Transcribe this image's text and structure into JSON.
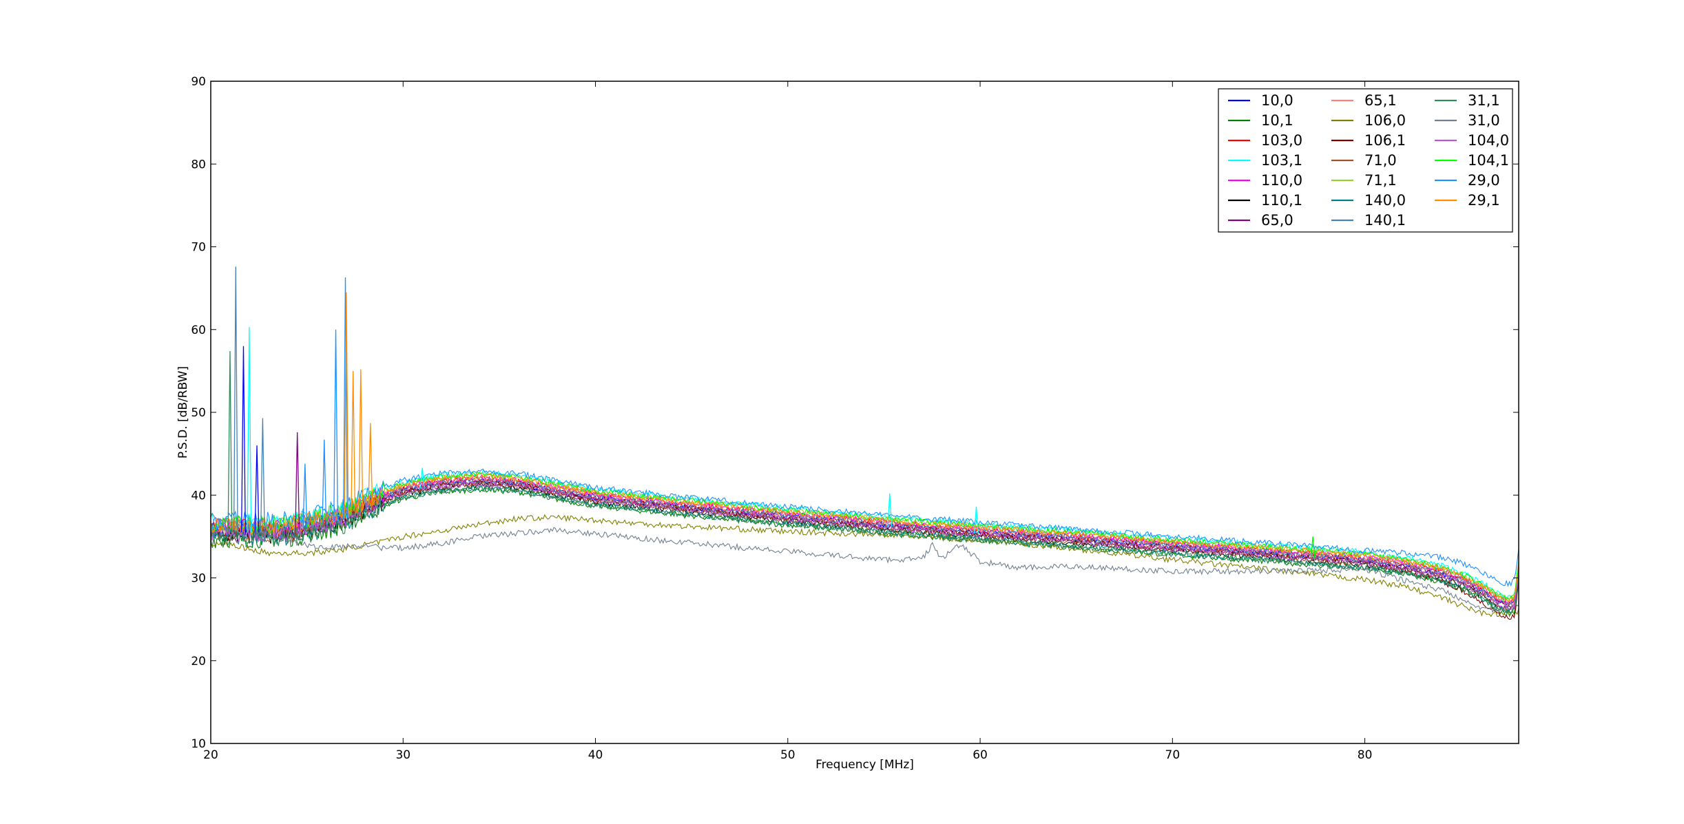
{
  "chart_data": {
    "type": "line",
    "title": "",
    "xlabel": "Frequency [MHz]",
    "ylabel": "P.S.D. [dB/RBW]",
    "xlim": [
      20,
      88
    ],
    "ylim": [
      10,
      90
    ],
    "xticks": [
      "20",
      "30",
      "40",
      "50",
      "60",
      "70",
      "80"
    ],
    "yticks": [
      "10",
      "20",
      "30",
      "40",
      "50",
      "60",
      "70",
      "80",
      "90"
    ],
    "grid": false,
    "legend_position": "top-right",
    "legend_columns": 3,
    "baseline": {
      "x": [
        20,
        20.5,
        21,
        22,
        23,
        24,
        25,
        26,
        27,
        28,
        29,
        30,
        32,
        34,
        36,
        38,
        40,
        45,
        50,
        55,
        60,
        65,
        70,
        75,
        80,
        82,
        84,
        85,
        86,
        86.5,
        87,
        87.5,
        87.8,
        88
      ],
      "y": [
        35.5,
        35.5,
        35.5,
        35.5,
        35.5,
        35.6,
        36,
        36.5,
        37.2,
        38.5,
        39.5,
        40.4,
        41.2,
        41.5,
        41.2,
        40.3,
        39.5,
        38.3,
        37.2,
        36.2,
        35.3,
        34.5,
        33.6,
        32.8,
        31.9,
        31.3,
        30.3,
        29.5,
        28.3,
        27.6,
        26.8,
        26.5,
        26.8,
        31
      ]
    },
    "series": [
      {
        "name": "10,0",
        "color": "#0000ff",
        "offset": 0.2
      },
      {
        "name": "10,1",
        "color": "#008000",
        "offset": -0.8
      },
      {
        "name": "103,0",
        "color": "#ff0000",
        "offset": 0.5
      },
      {
        "name": "103,1",
        "color": "#00ffff",
        "offset": 1.2
      },
      {
        "name": "110,0",
        "color": "#ff00ff",
        "offset": 0.6
      },
      {
        "name": "110,1",
        "color": "#000000",
        "offset": -0.3
      },
      {
        "name": "65,0",
        "color": "#800080",
        "offset": 0.1
      },
      {
        "name": "65,1",
        "color": "#ff7f7f",
        "offset": 0.4
      },
      {
        "name": "106,0",
        "color": "#808000",
        "offset": -4.0,
        "profile": "low-olive"
      },
      {
        "name": "106,1",
        "color": "#800000",
        "offset": 0.0,
        "tail": -1.5
      },
      {
        "name": "71,0",
        "color": "#a0522d",
        "offset": -0.2
      },
      {
        "name": "71,1",
        "color": "#9acd32",
        "offset": 0.9
      },
      {
        "name": "140,0",
        "color": "#008080",
        "offset": -0.6
      },
      {
        "name": "140,1",
        "color": "#4682b4",
        "offset": 0.3
      },
      {
        "name": "31,1",
        "color": "#2e8b57",
        "offset": -0.7
      },
      {
        "name": "31,0",
        "color": "#708090",
        "offset": -6.0,
        "profile": "low-gray"
      },
      {
        "name": "104,0",
        "color": "#ba55d3",
        "offset": -0.1
      },
      {
        "name": "104,1",
        "color": "#00ff00",
        "offset": 1.0
      },
      {
        "name": "29,0",
        "color": "#1e90ff",
        "offset": 1.4,
        "tail": 1.5
      },
      {
        "name": "29,1",
        "color": "#ff8c00",
        "offset": 0.8
      }
    ],
    "spikes": [
      {
        "x": 21.3,
        "y": 67.6,
        "color": "#4682b4"
      },
      {
        "x": 21.0,
        "y": 57.4,
        "color": "#2e8b57"
      },
      {
        "x": 22.0,
        "y": 60.3,
        "color": "#00ffff"
      },
      {
        "x": 21.7,
        "y": 58.0,
        "color": "#0000ff"
      },
      {
        "x": 22.7,
        "y": 49.3,
        "color": "#4682b4"
      },
      {
        "x": 22.4,
        "y": 46.0,
        "color": "#0000ff"
      },
      {
        "x": 24.5,
        "y": 47.6,
        "color": "#800080"
      },
      {
        "x": 24.9,
        "y": 43.8,
        "color": "#1e90ff"
      },
      {
        "x": 25.9,
        "y": 46.7,
        "color": "#1e90ff"
      },
      {
        "x": 26.5,
        "y": 60.0,
        "color": "#1e90ff"
      },
      {
        "x": 27.0,
        "y": 66.3,
        "color": "#1e90ff"
      },
      {
        "x": 27.05,
        "y": 64.5,
        "color": "#ff8c00"
      },
      {
        "x": 27.4,
        "y": 55.0,
        "color": "#ff8c00"
      },
      {
        "x": 27.8,
        "y": 55.2,
        "color": "#ff8c00"
      },
      {
        "x": 28.3,
        "y": 48.7,
        "color": "#ff8c00"
      },
      {
        "x": 31.0,
        "y": 43.3,
        "color": "#00ffff"
      },
      {
        "x": 55.3,
        "y": 40.2,
        "color": "#00ffff"
      },
      {
        "x": 59.8,
        "y": 38.6,
        "color": "#00ffff"
      },
      {
        "x": 77.3,
        "y": 35.0,
        "color": "#00ff00"
      }
    ],
    "low_profiles": {
      "low-olive": {
        "x": [
          20,
          21,
          22,
          23,
          24,
          25,
          26,
          27,
          28,
          29,
          30,
          32,
          34,
          36,
          38,
          40,
          42,
          45,
          50,
          55,
          60,
          65,
          70,
          75,
          80,
          82,
          84,
          86,
          87,
          88
        ],
        "y": [
          34,
          34,
          33.5,
          33,
          33,
          33,
          33.2,
          33.5,
          34,
          34.4,
          35,
          35.7,
          36.5,
          37.2,
          37.3,
          37,
          36.6,
          36.2,
          35.6,
          35.2,
          34.6,
          33.5,
          32.2,
          31,
          29.8,
          29,
          27.6,
          25.8,
          25.6,
          26
        ]
      },
      "low-gray": {
        "x": [
          20,
          21,
          22,
          23,
          24,
          25,
          26,
          27,
          28,
          29,
          30,
          32,
          34,
          36,
          38,
          40,
          45,
          50,
          55,
          57,
          57.5,
          58,
          59,
          60,
          62,
          65,
          70,
          75,
          80,
          84,
          86,
          87,
          88
        ],
        "y": [
          37.5,
          37,
          36,
          35,
          34.5,
          34,
          33.6,
          33.8,
          34,
          33.6,
          33.6,
          34.2,
          35,
          35.4,
          35.8,
          35.3,
          34.2,
          33.2,
          32.2,
          32.3,
          34,
          32.4,
          34,
          32,
          31.2,
          31.4,
          30.8,
          30.8,
          31,
          28.5,
          26.5,
          26,
          27
        ]
      }
    }
  }
}
